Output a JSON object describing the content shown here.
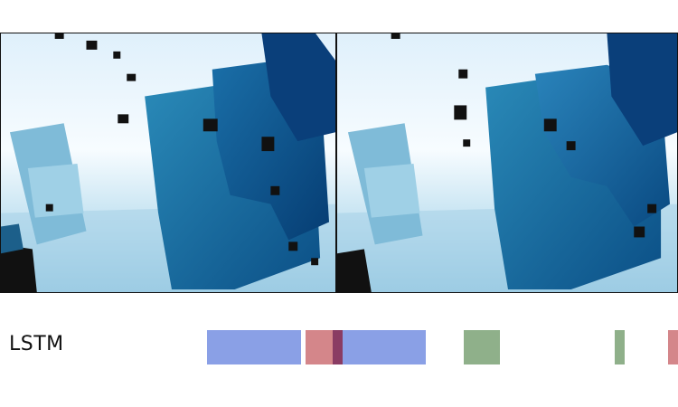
{
  "rows": [
    {
      "label": "LSTM"
    }
  ],
  "palette": {
    "blue": "#8aa0e6",
    "red": "#d4868a",
    "green": "#8fb08a",
    "overlap": "#8a3c63"
  }
}
